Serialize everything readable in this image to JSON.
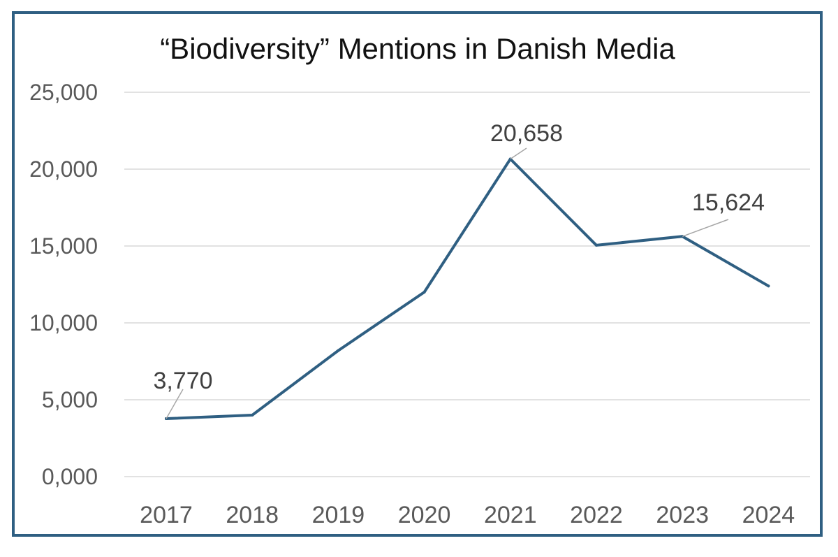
{
  "chart_data": {
    "type": "line",
    "title": "“Biodiversity” Mentions in Danish Media",
    "xlabel": "",
    "ylabel": "",
    "categories": [
      "2017",
      "2018",
      "2019",
      "2020",
      "2021",
      "2022",
      "2023",
      "2024"
    ],
    "series": [
      {
        "name": "Mentions",
        "values": [
          3770,
          4000,
          8200,
          12000,
          20658,
          15050,
          15624,
          12400
        ],
        "color": "#2f5f82"
      }
    ],
    "ylim": [
      0,
      25000
    ],
    "yticks": [
      0,
      5000,
      10000,
      15000,
      20000,
      25000
    ],
    "ytick_labels": [
      "0,000",
      "5,000",
      "10,000",
      "15,000",
      "20,000",
      "25,000"
    ],
    "grid": true,
    "legend": "none",
    "data_labels": [
      {
        "category": "2017",
        "text": "3,770"
      },
      {
        "category": "2021",
        "text": "20,658"
      },
      {
        "category": "2023",
        "text": "15,624"
      }
    ]
  }
}
